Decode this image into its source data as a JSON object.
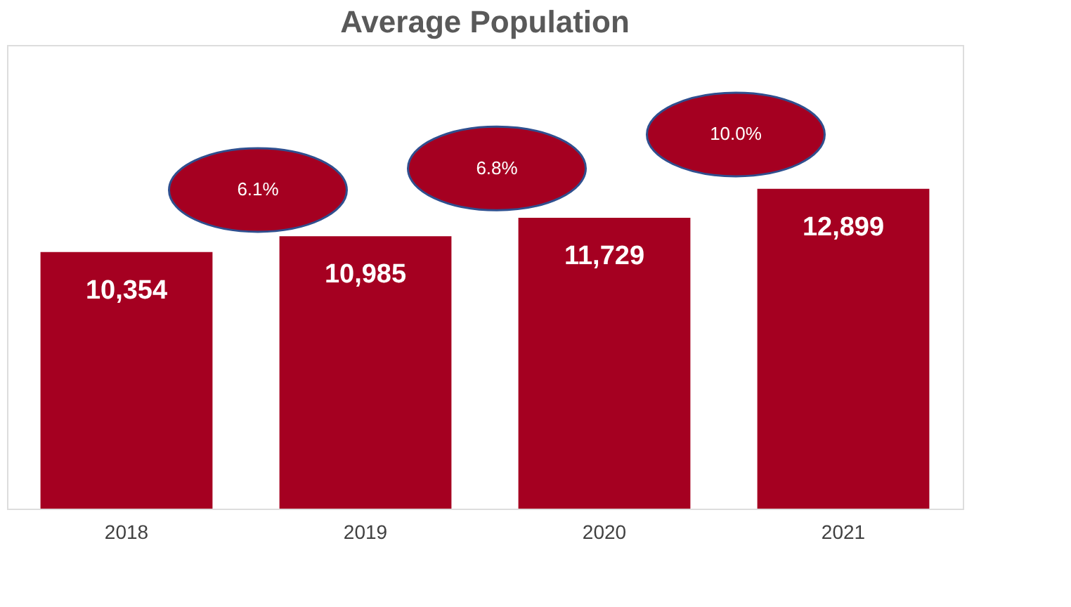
{
  "chart_data": {
    "type": "bar",
    "title": "Average Population",
    "categories": [
      "2018",
      "2019",
      "2020",
      "2021"
    ],
    "values": [
      10354,
      10985,
      11729,
      12899
    ],
    "value_labels": [
      "10,354",
      "10,985",
      "11,729",
      "12,899"
    ],
    "color": "#a50021",
    "annotations": [
      "6.1%",
      "6.8%",
      "10.0%"
    ],
    "grid": false
  }
}
